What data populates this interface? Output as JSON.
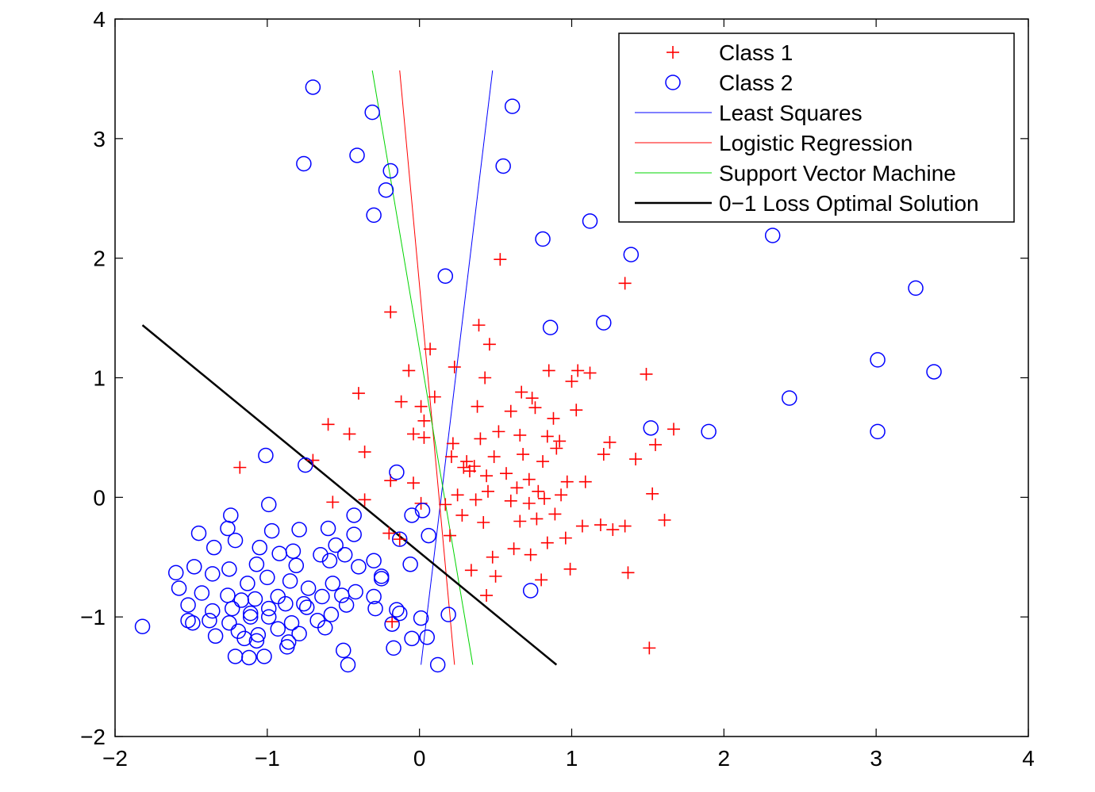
{
  "chart_data": {
    "type": "scatter",
    "title": "",
    "xlabel": "",
    "ylabel": "",
    "xlim": [
      -2,
      4
    ],
    "ylim": [
      -2,
      4
    ],
    "xticks": [
      -2,
      -1,
      0,
      1,
      2,
      3,
      4
    ],
    "yticks": [
      -2,
      -1,
      0,
      1,
      2,
      3,
      4
    ],
    "xtick_labels": [
      "−2",
      "−1",
      "0",
      "1",
      "2",
      "3",
      "4"
    ],
    "ytick_labels": [
      "−2",
      "−1",
      "0",
      "1",
      "2",
      "3",
      "4"
    ],
    "legend_position": "top-right",
    "series": [
      {
        "name": "Class 1",
        "kind": "scatter",
        "marker": "plus",
        "color": "#ff0000",
        "points": [
          [
            0.53,
            1.99
          ],
          [
            1.35,
            1.79
          ],
          [
            -0.19,
            1.55
          ],
          [
            0.39,
            1.44
          ],
          [
            0.46,
            1.28
          ],
          [
            0.07,
            1.24
          ],
          [
            0.23,
            1.09
          ],
          [
            -0.07,
            1.06
          ],
          [
            0.43,
            1.0
          ],
          [
            0.85,
            1.06
          ],
          [
            1.04,
            1.06
          ],
          [
            1.12,
            1.04
          ],
          [
            1.49,
            1.03
          ],
          [
            1.0,
            0.97
          ],
          [
            -0.4,
            0.87
          ],
          [
            0.67,
            0.88
          ],
          [
            0.74,
            0.83
          ],
          [
            0.1,
            0.84
          ],
          [
            0.01,
            0.76
          ],
          [
            0.38,
            0.76
          ],
          [
            0.6,
            0.72
          ],
          [
            0.76,
            0.75
          ],
          [
            0.88,
            0.66
          ],
          [
            1.03,
            0.73
          ],
          [
            -0.12,
            0.8
          ],
          [
            0.03,
            0.64
          ],
          [
            -0.6,
            0.61
          ],
          [
            -0.46,
            0.53
          ],
          [
            -0.04,
            0.53
          ],
          [
            0.03,
            0.5
          ],
          [
            0.22,
            0.45
          ],
          [
            0.4,
            0.49
          ],
          [
            0.52,
            0.55
          ],
          [
            0.66,
            0.52
          ],
          [
            0.84,
            0.51
          ],
          [
            0.92,
            0.47
          ],
          [
            1.25,
            0.46
          ],
          [
            1.67,
            0.57
          ],
          [
            1.55,
            0.44
          ],
          [
            0.21,
            0.34
          ],
          [
            0.31,
            0.3
          ],
          [
            0.33,
            0.22
          ],
          [
            0.36,
            0.26
          ],
          [
            0.49,
            0.34
          ],
          [
            0.68,
            0.36
          ],
          [
            0.81,
            0.3
          ],
          [
            0.9,
            0.41
          ],
          [
            1.21,
            0.36
          ],
          [
            1.42,
            0.32
          ],
          [
            -0.36,
            0.38
          ],
          [
            -0.7,
            0.31
          ],
          [
            -1.18,
            0.25
          ],
          [
            -0.19,
            0.14
          ],
          [
            -0.04,
            0.12
          ],
          [
            0.29,
            0.25
          ],
          [
            0.44,
            0.18
          ],
          [
            0.57,
            0.2
          ],
          [
            0.64,
            0.08
          ],
          [
            0.72,
            0.15
          ],
          [
            0.78,
            0.05
          ],
          [
            0.97,
            0.13
          ],
          [
            1.09,
            0.13
          ],
          [
            0.25,
            0.02
          ],
          [
            0.37,
            -0.02
          ],
          [
            0.45,
            0.05
          ],
          [
            0.6,
            -0.03
          ],
          [
            0.72,
            -0.05
          ],
          [
            0.82,
            -0.01
          ],
          [
            0.93,
            0.02
          ],
          [
            -0.57,
            -0.04
          ],
          [
            -0.36,
            -0.02
          ],
          [
            0.01,
            -0.05
          ],
          [
            0.17,
            -0.06
          ],
          [
            1.53,
            0.03
          ],
          [
            0.28,
            -0.15
          ],
          [
            0.42,
            -0.21
          ],
          [
            0.66,
            -0.2
          ],
          [
            0.77,
            -0.18
          ],
          [
            0.89,
            -0.14
          ],
          [
            1.19,
            -0.23
          ],
          [
            1.35,
            -0.24
          ],
          [
            1.61,
            -0.19
          ],
          [
            -0.2,
            -0.3
          ],
          [
            -0.13,
            -0.35
          ],
          [
            0.2,
            -0.32
          ],
          [
            0.48,
            -0.5
          ],
          [
            0.62,
            -0.43
          ],
          [
            0.73,
            -0.48
          ],
          [
            0.84,
            -0.38
          ],
          [
            0.96,
            -0.34
          ],
          [
            1.07,
            -0.24
          ],
          [
            1.27,
            -0.27
          ],
          [
            0.34,
            -0.61
          ],
          [
            0.5,
            -0.66
          ],
          [
            0.8,
            -0.69
          ],
          [
            0.99,
            -0.6
          ],
          [
            1.37,
            -0.63
          ],
          [
            1.51,
            -1.26
          ],
          [
            0.44,
            -0.82
          ],
          [
            -0.18,
            -1.04
          ]
        ]
      },
      {
        "name": "Class 2",
        "kind": "scatter",
        "marker": "circle",
        "color": "#0000ff",
        "points": [
          [
            -0.7,
            3.43
          ],
          [
            -0.31,
            3.22
          ],
          [
            0.61,
            3.27
          ],
          [
            -0.76,
            2.79
          ],
          [
            -0.41,
            2.86
          ],
          [
            -0.19,
            2.73
          ],
          [
            0.55,
            2.77
          ],
          [
            -0.22,
            2.57
          ],
          [
            -0.3,
            2.36
          ],
          [
            1.12,
            2.31
          ],
          [
            2.32,
            2.19
          ],
          [
            0.81,
            2.16
          ],
          [
            1.39,
            2.03
          ],
          [
            0.17,
            1.85
          ],
          [
            3.26,
            1.75
          ],
          [
            1.21,
            1.46
          ],
          [
            0.86,
            1.42
          ],
          [
            3.01,
            1.15
          ],
          [
            3.38,
            1.05
          ],
          [
            2.43,
            0.83
          ],
          [
            1.52,
            0.58
          ],
          [
            1.9,
            0.55
          ],
          [
            3.01,
            0.55
          ],
          [
            -1.01,
            0.35
          ],
          [
            -0.75,
            0.27
          ],
          [
            -0.15,
            0.21
          ],
          [
            -0.05,
            -0.15
          ],
          [
            0.02,
            -0.11
          ],
          [
            -0.99,
            -0.06
          ],
          [
            -0.43,
            -0.15
          ],
          [
            -1.24,
            -0.15
          ],
          [
            -0.97,
            -0.28
          ],
          [
            -0.6,
            -0.26
          ],
          [
            -0.79,
            -0.27
          ],
          [
            -0.43,
            -0.31
          ],
          [
            -1.26,
            -0.26
          ],
          [
            -1.45,
            -0.3
          ],
          [
            -0.13,
            -0.35
          ],
          [
            -0.55,
            -0.4
          ],
          [
            -0.83,
            -0.45
          ],
          [
            -1.35,
            -0.42
          ],
          [
            -1.21,
            -0.36
          ],
          [
            0.06,
            -0.32
          ],
          [
            -1.05,
            -0.42
          ],
          [
            -0.92,
            -0.47
          ],
          [
            -0.65,
            -0.48
          ],
          [
            -0.49,
            -0.48
          ],
          [
            -0.3,
            -0.53
          ],
          [
            -1.48,
            -0.58
          ],
          [
            -1.25,
            -0.6
          ],
          [
            -1.07,
            -0.56
          ],
          [
            -0.81,
            -0.57
          ],
          [
            -0.59,
            -0.53
          ],
          [
            -0.4,
            -0.58
          ],
          [
            -0.25,
            -0.66
          ],
          [
            -0.25,
            -0.68
          ],
          [
            -0.06,
            -0.56
          ],
          [
            -1.6,
            -0.63
          ],
          [
            -1.36,
            -0.64
          ],
          [
            -1.13,
            -0.72
          ],
          [
            -1.0,
            -0.67
          ],
          [
            -0.85,
            -0.7
          ],
          [
            -0.73,
            -0.76
          ],
          [
            -0.57,
            -0.72
          ],
          [
            -0.42,
            -0.79
          ],
          [
            -1.58,
            -0.76
          ],
          [
            -1.43,
            -0.8
          ],
          [
            -1.26,
            -0.82
          ],
          [
            -1.17,
            -0.86
          ],
          [
            -1.08,
            -0.85
          ],
          [
            -0.93,
            -0.83
          ],
          [
            -0.76,
            -0.89
          ],
          [
            -0.64,
            -0.83
          ],
          [
            -0.51,
            -0.82
          ],
          [
            -0.3,
            -0.83
          ],
          [
            0.73,
            -0.78
          ],
          [
            -1.52,
            -0.9
          ],
          [
            -1.36,
            -0.95
          ],
          [
            -1.23,
            -0.93
          ],
          [
            -1.11,
            -0.97
          ],
          [
            -0.99,
            -0.93
          ],
          [
            -0.88,
            -0.89
          ],
          [
            -0.74,
            -0.92
          ],
          [
            -0.48,
            -0.9
          ],
          [
            -0.29,
            -0.93
          ],
          [
            -0.15,
            -0.94
          ],
          [
            -1.52,
            -1.03
          ],
          [
            -1.38,
            -1.03
          ],
          [
            -1.25,
            -1.05
          ],
          [
            -1.11,
            -1.0
          ],
          [
            -0.99,
            -1.0
          ],
          [
            -0.84,
            -1.05
          ],
          [
            -0.67,
            -1.03
          ],
          [
            -0.58,
            -0.98
          ],
          [
            -0.13,
            -0.97
          ],
          [
            0.01,
            -1.01
          ],
          [
            0.19,
            -0.98
          ],
          [
            -1.82,
            -1.08
          ],
          [
            -1.49,
            -1.05
          ],
          [
            -1.34,
            -1.16
          ],
          [
            -1.19,
            -1.12
          ],
          [
            -1.06,
            -1.15
          ],
          [
            -0.93,
            -1.1
          ],
          [
            -0.79,
            -1.14
          ],
          [
            -0.62,
            -1.09
          ],
          [
            -0.18,
            -1.06
          ],
          [
            -1.21,
            -1.33
          ],
          [
            -1.12,
            -1.34
          ],
          [
            -1.02,
            -1.33
          ],
          [
            -0.86,
            -1.21
          ],
          [
            -0.5,
            -1.28
          ],
          [
            -0.47,
            -1.4
          ],
          [
            -0.17,
            -1.26
          ],
          [
            -0.05,
            -1.18
          ],
          [
            0.05,
            -1.17
          ],
          [
            0.12,
            -1.4
          ],
          [
            -1.15,
            -1.18
          ],
          [
            -0.87,
            -1.25
          ],
          [
            -1.07,
            -1.2
          ]
        ]
      },
      {
        "name": "Least Squares",
        "kind": "line",
        "color": "#0000ff",
        "line_width": 1,
        "points": [
          [
            0.01,
            -1.4
          ],
          [
            0.48,
            3.57
          ]
        ]
      },
      {
        "name": "Logistic Regression",
        "kind": "line",
        "color": "#ff0000",
        "line_width": 1,
        "points": [
          [
            -0.13,
            3.57
          ],
          [
            0.23,
            -1.4
          ]
        ]
      },
      {
        "name": "Support Vector Machine",
        "kind": "line",
        "color": "#00d400",
        "line_width": 1,
        "points": [
          [
            -0.31,
            3.57
          ],
          [
            0.35,
            -1.4
          ]
        ]
      },
      {
        "name": "0−1 Loss Optimal Solution",
        "kind": "line",
        "color": "#000000",
        "line_width": 2.5,
        "points": [
          [
            -1.82,
            1.44
          ],
          [
            0.9,
            -1.4
          ]
        ]
      }
    ]
  }
}
